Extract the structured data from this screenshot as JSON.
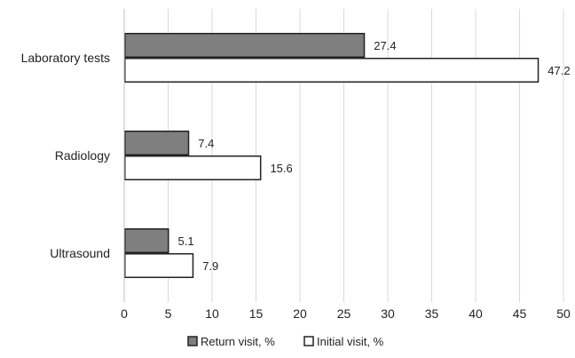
{
  "chart_data": {
    "type": "bar",
    "orientation": "horizontal",
    "categories": [
      "Laboratory tests",
      "Radiology",
      "Ultrasound"
    ],
    "series": [
      {
        "name": "Return visit, %",
        "values": [
          27.4,
          7.4,
          5.1
        ],
        "fill": "#7f7f7f",
        "stroke": "#222222"
      },
      {
        "name": "Initial visit, %",
        "values": [
          47.2,
          15.6,
          7.9
        ],
        "fill": "#ffffff",
        "stroke": "#222222"
      }
    ],
    "xlim": [
      0,
      50
    ],
    "xticks": [
      "0",
      "5",
      "10",
      "15",
      "20",
      "25",
      "30",
      "35",
      "40",
      "45",
      "50"
    ],
    "title": "",
    "xlabel": "",
    "ylabel": "",
    "grid": "vertical",
    "legend_position": "bottom"
  }
}
